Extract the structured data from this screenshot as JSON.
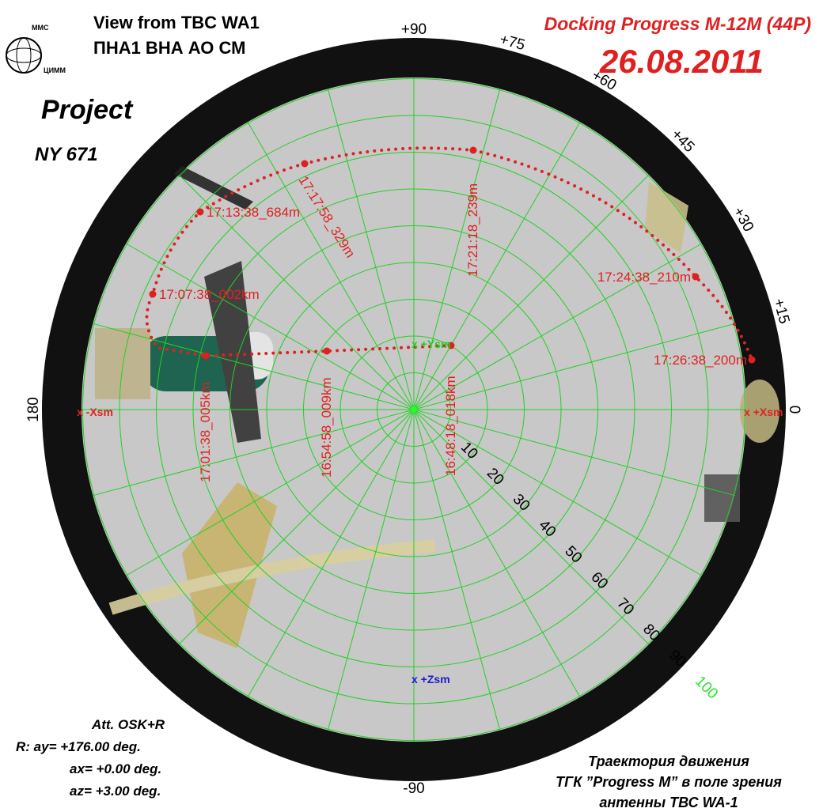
{
  "header": {
    "line1": "View from TBC WA1",
    "line2": "ПНА1 ВНА АО СМ"
  },
  "logo": {
    "top": "ММС",
    "bottom": "ЦИММ"
  },
  "docking": {
    "title": "Docking Progress M-12M (44P)",
    "date": "26.08.2011"
  },
  "project": {
    "label": "Project",
    "code": "NY 671"
  },
  "grid": {
    "radial_labels": [
      "10",
      "20",
      "30",
      "40",
      "50",
      "60",
      "70",
      "80",
      "90",
      "100"
    ],
    "angle_labels": [
      "+90",
      "+75",
      "+60",
      "+45",
      "+30",
      "+15",
      "0",
      "180",
      "-90"
    ]
  },
  "markers": [
    "x -Xsm",
    "x +Xsm",
    "x +Ysm",
    "x +Zsm"
  ],
  "trajectory": [
    "16:48:18_018km",
    "16:54:58_009km",
    "17:01:38_005km",
    "17:07:38_002km",
    "17:13:38_684m",
    "17:17:58_329m",
    "17:21:18_239m",
    "17:24:38_210m",
    "17:26:38_200m"
  ],
  "attitude": [
    "Att. OSK+R",
    "R:  ay= +176.00 deg.",
    "ax= +0.00 deg.",
    "az= +3.00 deg."
  ],
  "caption": [
    "Траектория движения",
    "ТГК ”Progress M”  в поле зрения",
    "антенны ТВС WA-1"
  ]
}
